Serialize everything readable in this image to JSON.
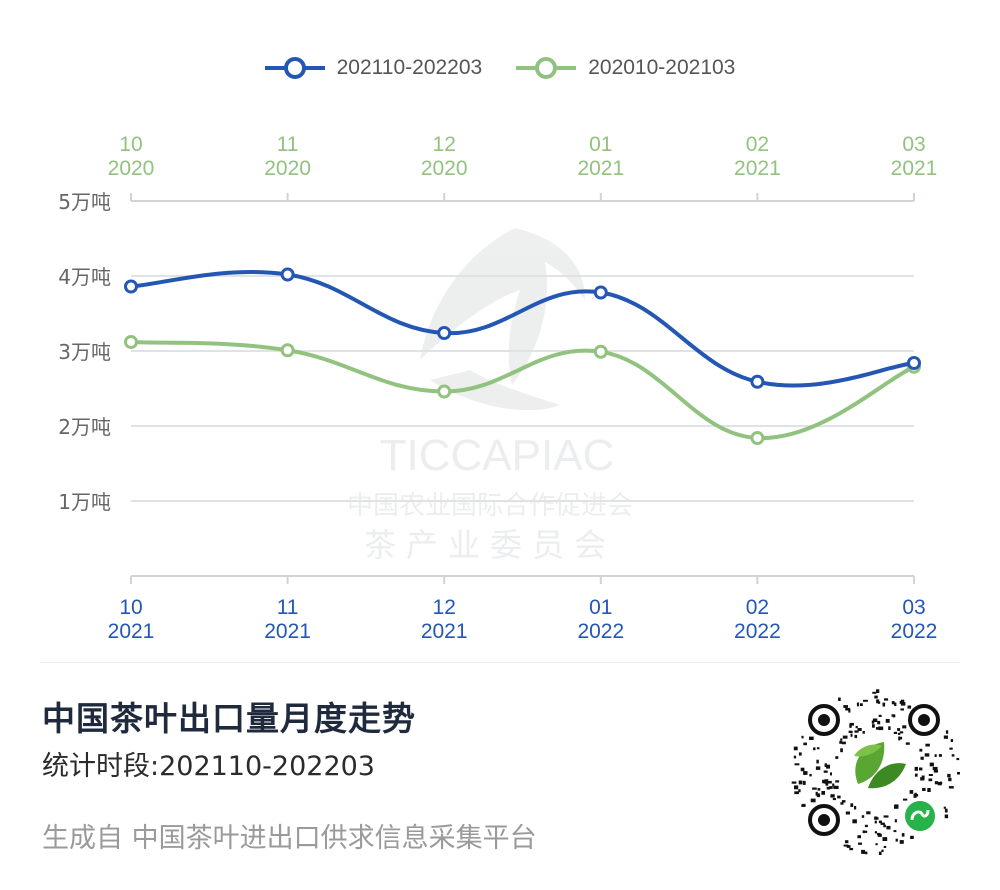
{
  "chart_data": {
    "type": "line",
    "legend": [
      {
        "name": "202110-202203",
        "color": "#2457b4"
      },
      {
        "name": "202010-202103",
        "color": "#92c27f"
      }
    ],
    "legend_position": "top-center",
    "x_bottom_ticks": [
      {
        "month": "10",
        "year": "2021"
      },
      {
        "month": "11",
        "year": "2021"
      },
      {
        "month": "12",
        "year": "2021"
      },
      {
        "month": "01",
        "year": "2022"
      },
      {
        "month": "02",
        "year": "2022"
      },
      {
        "month": "03",
        "year": "2022"
      }
    ],
    "x_top_ticks": [
      {
        "month": "10",
        "year": "2020"
      },
      {
        "month": "11",
        "year": "2020"
      },
      {
        "month": "12",
        "year": "2020"
      },
      {
        "month": "01",
        "year": "2021"
      },
      {
        "month": "02",
        "year": "2021"
      },
      {
        "month": "03",
        "year": "2021"
      }
    ],
    "y_ticks": [
      {
        "value": 1,
        "label": "1万吨"
      },
      {
        "value": 2,
        "label": "2万吨"
      },
      {
        "value": 3,
        "label": "3万吨"
      },
      {
        "value": 4,
        "label": "4万吨"
      },
      {
        "value": 5,
        "label": "5万吨"
      }
    ],
    "ylim": [
      0,
      5
    ],
    "grid": true,
    "series": [
      {
        "name": "202110-202203",
        "color": "#2457b4",
        "values": [
          3.86,
          4.02,
          3.24,
          3.78,
          2.59,
          2.84
        ]
      },
      {
        "name": "202010-202103",
        "color": "#92c27f",
        "values": [
          3.12,
          3.01,
          2.46,
          2.99,
          1.84,
          2.79
        ]
      }
    ]
  },
  "watermark": {
    "name": "TICCAPIAC",
    "line1": "中国农业国际合作促进会",
    "line2": "茶产业委员会"
  },
  "footer": {
    "title": "中国茶叶出口量月度走势",
    "period": "统计时段:202110-202203",
    "source": "生成自 中国茶叶进出口供求信息采集平台"
  },
  "qr": {
    "icon": "mini-program-qr-code"
  }
}
